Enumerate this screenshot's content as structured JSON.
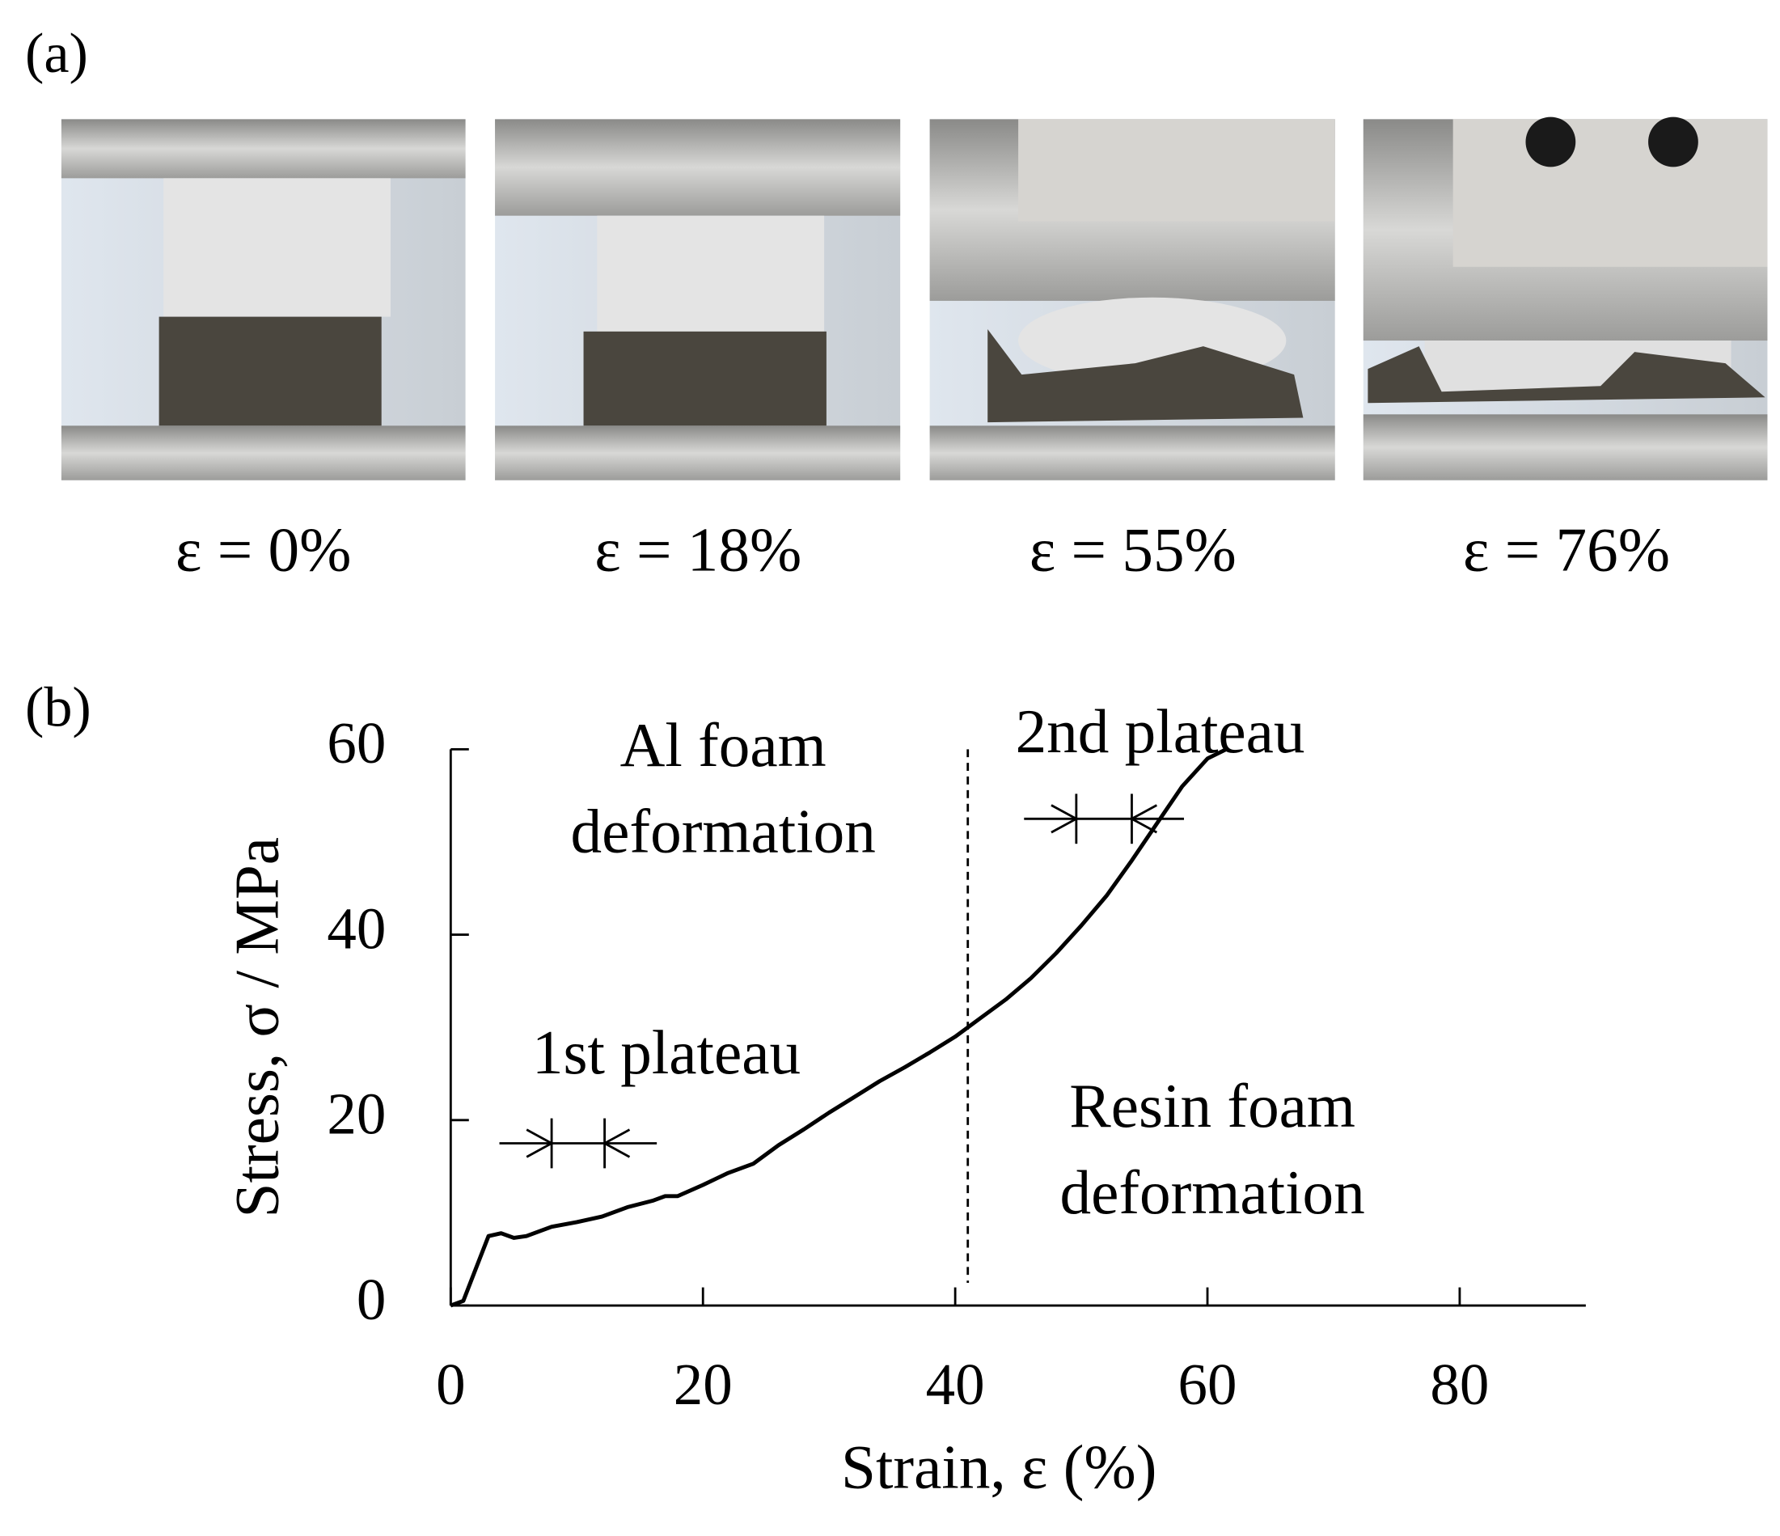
{
  "panel_labels": [
    "(a)",
    "(b)"
  ],
  "photo_captions": [
    "ε = 0%",
    "ε = 18%",
    "ε = 55%",
    "ε = 76%"
  ],
  "chart_data": {
    "type": "line",
    "x_label": "Strain, ε (%)",
    "y_label": "Stress, σ / MPa",
    "xlim": [
      0,
      90
    ],
    "ylim": [
      0,
      60
    ],
    "xticks": [
      0,
      20,
      40,
      60,
      80
    ],
    "yticks": [
      0,
      20,
      40,
      60
    ],
    "color": "#000000",
    "x": [
      0,
      1,
      2,
      3,
      4,
      5,
      6,
      8,
      10,
      12,
      14,
      16,
      17,
      18,
      20,
      22,
      24,
      26,
      28,
      30,
      32,
      34,
      36,
      38,
      40,
      42,
      44,
      46,
      48,
      50,
      52,
      54,
      56,
      58,
      60,
      61.5
    ],
    "values": [
      0,
      0.5,
      4,
      7.5,
      7.8,
      7.3,
      7.5,
      8.5,
      9,
      9.6,
      10.6,
      11.3,
      11.8,
      11.8,
      13,
      14.3,
      15.3,
      17.3,
      19,
      20.8,
      22.5,
      24.2,
      25.7,
      27.3,
      29,
      31,
      33,
      35.3,
      38,
      41,
      44.2,
      48,
      52,
      56,
      59,
      60
    ],
    "divider_x": 41,
    "annotations": [
      {
        "lines": [
          "Al foam",
          "deformation"
        ]
      },
      {
        "lines": [
          "Resin foam",
          "deformation"
        ]
      }
    ],
    "plateau_markers": [
      {
        "label": "1st plateau",
        "y": 17.5,
        "from": 8,
        "to": 12.2
      },
      {
        "label": "2nd plateau",
        "y": 52.5,
        "from": 49.6,
        "to": 54
      }
    ]
  }
}
